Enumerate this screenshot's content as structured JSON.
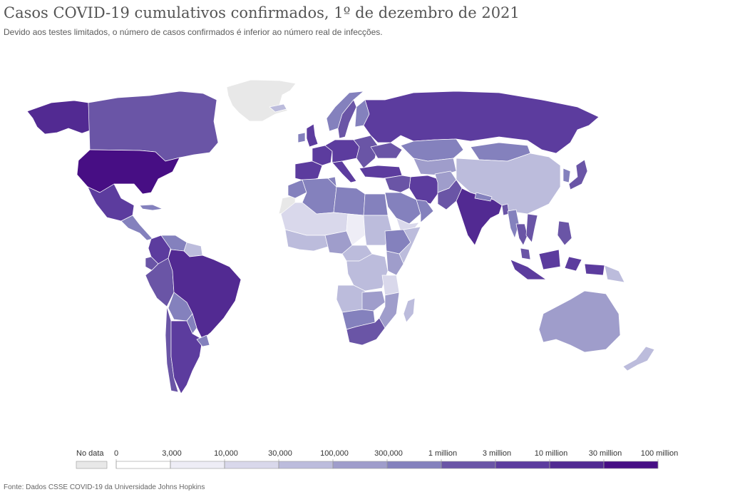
{
  "header": {
    "title": "Casos COVID-19 cumulativos confirmados, 1º de dezembro de 2021",
    "subtitle": "Devido aos testes limitados, o número de casos confirmados é inferior ao número real de infecções."
  },
  "colors": {
    "no_data": "#e8e8e8",
    "bins": [
      "#ffffff",
      "#eeedf6",
      "#d9d8eb",
      "#bcbcdc",
      "#9f9dcb",
      "#8481bd",
      "#6a55a6",
      "#5c3c9e",
      "#522a92",
      "#470e84"
    ]
  },
  "legend": {
    "no_data_label": "No data",
    "tick_labels": [
      "0",
      "3,000",
      "10,000",
      "30,000",
      "100,000",
      "300,000",
      "1 million",
      "3 million",
      "10 million",
      "30 million",
      "100 million"
    ]
  },
  "regions": [
    {
      "name": "Greenland",
      "bin": -1
    },
    {
      "name": "Western Sahara",
      "bin": -1
    },
    {
      "name": "Alaska",
      "bin": 8
    },
    {
      "name": "Canada",
      "bin": 6
    },
    {
      "name": "United States",
      "bin": 9
    },
    {
      "name": "Mexico",
      "bin": 7
    },
    {
      "name": "Central America",
      "bin": 5
    },
    {
      "name": "Cuba",
      "bin": 5
    },
    {
      "name": "Colombia",
      "bin": 7
    },
    {
      "name": "Venezuela",
      "bin": 5
    },
    {
      "name": "Guyana Suriname",
      "bin": 3
    },
    {
      "name": "Ecuador",
      "bin": 6
    },
    {
      "name": "Peru",
      "bin": 6
    },
    {
      "name": "Brazil",
      "bin": 8
    },
    {
      "name": "Bolivia",
      "bin": 5
    },
    {
      "name": "Paraguay",
      "bin": 5
    },
    {
      "name": "Chile",
      "bin": 6
    },
    {
      "name": "Argentina",
      "bin": 7
    },
    {
      "name": "Uruguay",
      "bin": 5
    },
    {
      "name": "Iceland",
      "bin": 3
    },
    {
      "name": "Norway",
      "bin": 5
    },
    {
      "name": "Sweden",
      "bin": 6
    },
    {
      "name": "Finland",
      "bin": 5
    },
    {
      "name": "United Kingdom",
      "bin": 7
    },
    {
      "name": "Ireland",
      "bin": 5
    },
    {
      "name": "Iberia",
      "bin": 7
    },
    {
      "name": "France",
      "bin": 7
    },
    {
      "name": "Central Europe",
      "bin": 7
    },
    {
      "name": "Italy",
      "bin": 7
    },
    {
      "name": "Eastern Europe",
      "bin": 6
    },
    {
      "name": "Ukraine",
      "bin": 6
    },
    {
      "name": "Turkey",
      "bin": 7
    },
    {
      "name": "Russia",
      "bin": 7
    },
    {
      "name": "Kazakhstan",
      "bin": 5
    },
    {
      "name": "Central Asia",
      "bin": 4
    },
    {
      "name": "Mongolia",
      "bin": 5
    },
    {
      "name": "China",
      "bin": 3
    },
    {
      "name": "Korea",
      "bin": 5
    },
    {
      "name": "Japan",
      "bin": 6
    },
    {
      "name": "Iran",
      "bin": 7
    },
    {
      "name": "Iraq Syria",
      "bin": 6
    },
    {
      "name": "Saudi Arabia",
      "bin": 5
    },
    {
      "name": "Yemen",
      "bin": 2
    },
    {
      "name": "Oman Gulf",
      "bin": 5
    },
    {
      "name": "Afghanistan",
      "bin": 4
    },
    {
      "name": "Pakistan",
      "bin": 6
    },
    {
      "name": "India",
      "bin": 8
    },
    {
      "name": "Nepal",
      "bin": 5
    },
    {
      "name": "Bangladesh",
      "bin": 6
    },
    {
      "name": "Myanmar",
      "bin": 5
    },
    {
      "name": "Thailand",
      "bin": 6
    },
    {
      "name": "Vietnam",
      "bin": 6
    },
    {
      "name": "Malaysia",
      "bin": 6
    },
    {
      "name": "Indonesia",
      "bin": 7
    },
    {
      "name": "Philippines",
      "bin": 6
    },
    {
      "name": "Papua New Guinea",
      "bin": 3
    },
    {
      "name": "Australia",
      "bin": 4
    },
    {
      "name": "New Zealand",
      "bin": 3
    },
    {
      "name": "Morocco",
      "bin": 5
    },
    {
      "name": "Algeria",
      "bin": 5
    },
    {
      "name": "Tunisia",
      "bin": 5
    },
    {
      "name": "Libya",
      "bin": 5
    },
    {
      "name": "Egypt",
      "bin": 5
    },
    {
      "name": "Mauritania Mali Niger",
      "bin": 2
    },
    {
      "name": "Chad",
      "bin": 1
    },
    {
      "name": "Sudan",
      "bin": 3
    },
    {
      "name": "West Africa",
      "bin": 3
    },
    {
      "name": "Nigeria",
      "bin": 4
    },
    {
      "name": "Ethiopia",
      "bin": 5
    },
    {
      "name": "Somalia",
      "bin": 3
    },
    {
      "name": "Kenya",
      "bin": 4
    },
    {
      "name": "Central Africa",
      "bin": 3
    },
    {
      "name": "DR Congo",
      "bin": 3
    },
    {
      "name": "Tanzania",
      "bin": 2
    },
    {
      "name": "Angola",
      "bin": 3
    },
    {
      "name": "Zambia",
      "bin": 4
    },
    {
      "name": "Mozambique",
      "bin": 4
    },
    {
      "name": "Namibia Botswana",
      "bin": 5
    },
    {
      "name": "South Africa",
      "bin": 6
    },
    {
      "name": "Madagascar",
      "bin": 3
    }
  ]
}
